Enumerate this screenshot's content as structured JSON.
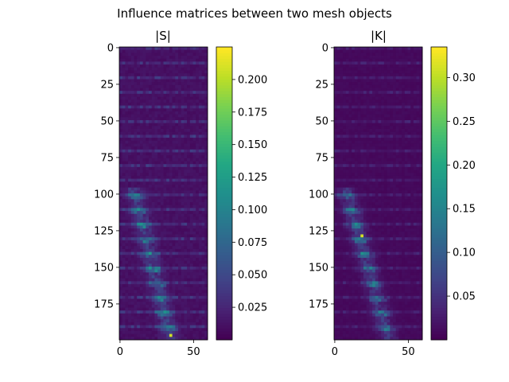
{
  "figure": {
    "suptitle": "Influence matrices between two mesh objects"
  },
  "chart_data": [
    {
      "type": "heatmap",
      "title": "|S|",
      "rows": 200,
      "cols": 60,
      "xticks": [
        "0",
        "50"
      ],
      "yticks": [
        "0",
        "25",
        "50",
        "75",
        "100",
        "125",
        "150",
        "175"
      ],
      "colorbar": {
        "min": 0.0,
        "max": 0.225,
        "ticks": [
          "0.025",
          "0.050",
          "0.075",
          "0.100",
          "0.125",
          "0.150",
          "0.175",
          "0.200"
        ]
      },
      "colormap": "viridis",
      "pattern": {
        "band_period_rows": 10,
        "diagonal_start_row": 100,
        "diagonal_start_col": 10,
        "diagonal_end_row": 195,
        "diagonal_end_col": 33,
        "peak_value": 0.22,
        "background_value": 0.01
      }
    },
    {
      "type": "heatmap",
      "title": "|K|",
      "rows": 200,
      "cols": 60,
      "xticks": [
        "0",
        "50"
      ],
      "yticks": [
        "0",
        "25",
        "50",
        "75",
        "100",
        "125",
        "150",
        "175"
      ],
      "colorbar": {
        "min": 0.0,
        "max": 0.335,
        "ticks": [
          "0.05",
          "0.10",
          "0.15",
          "0.20",
          "0.25",
          "0.30"
        ]
      },
      "colormap": "viridis",
      "pattern": {
        "band_period_rows": 10,
        "diagonal_start_row": 100,
        "diagonal_start_col": 8,
        "diagonal_end_row": 195,
        "diagonal_end_col": 35,
        "peak_value": 0.33,
        "background_value": 0.008
      }
    }
  ]
}
